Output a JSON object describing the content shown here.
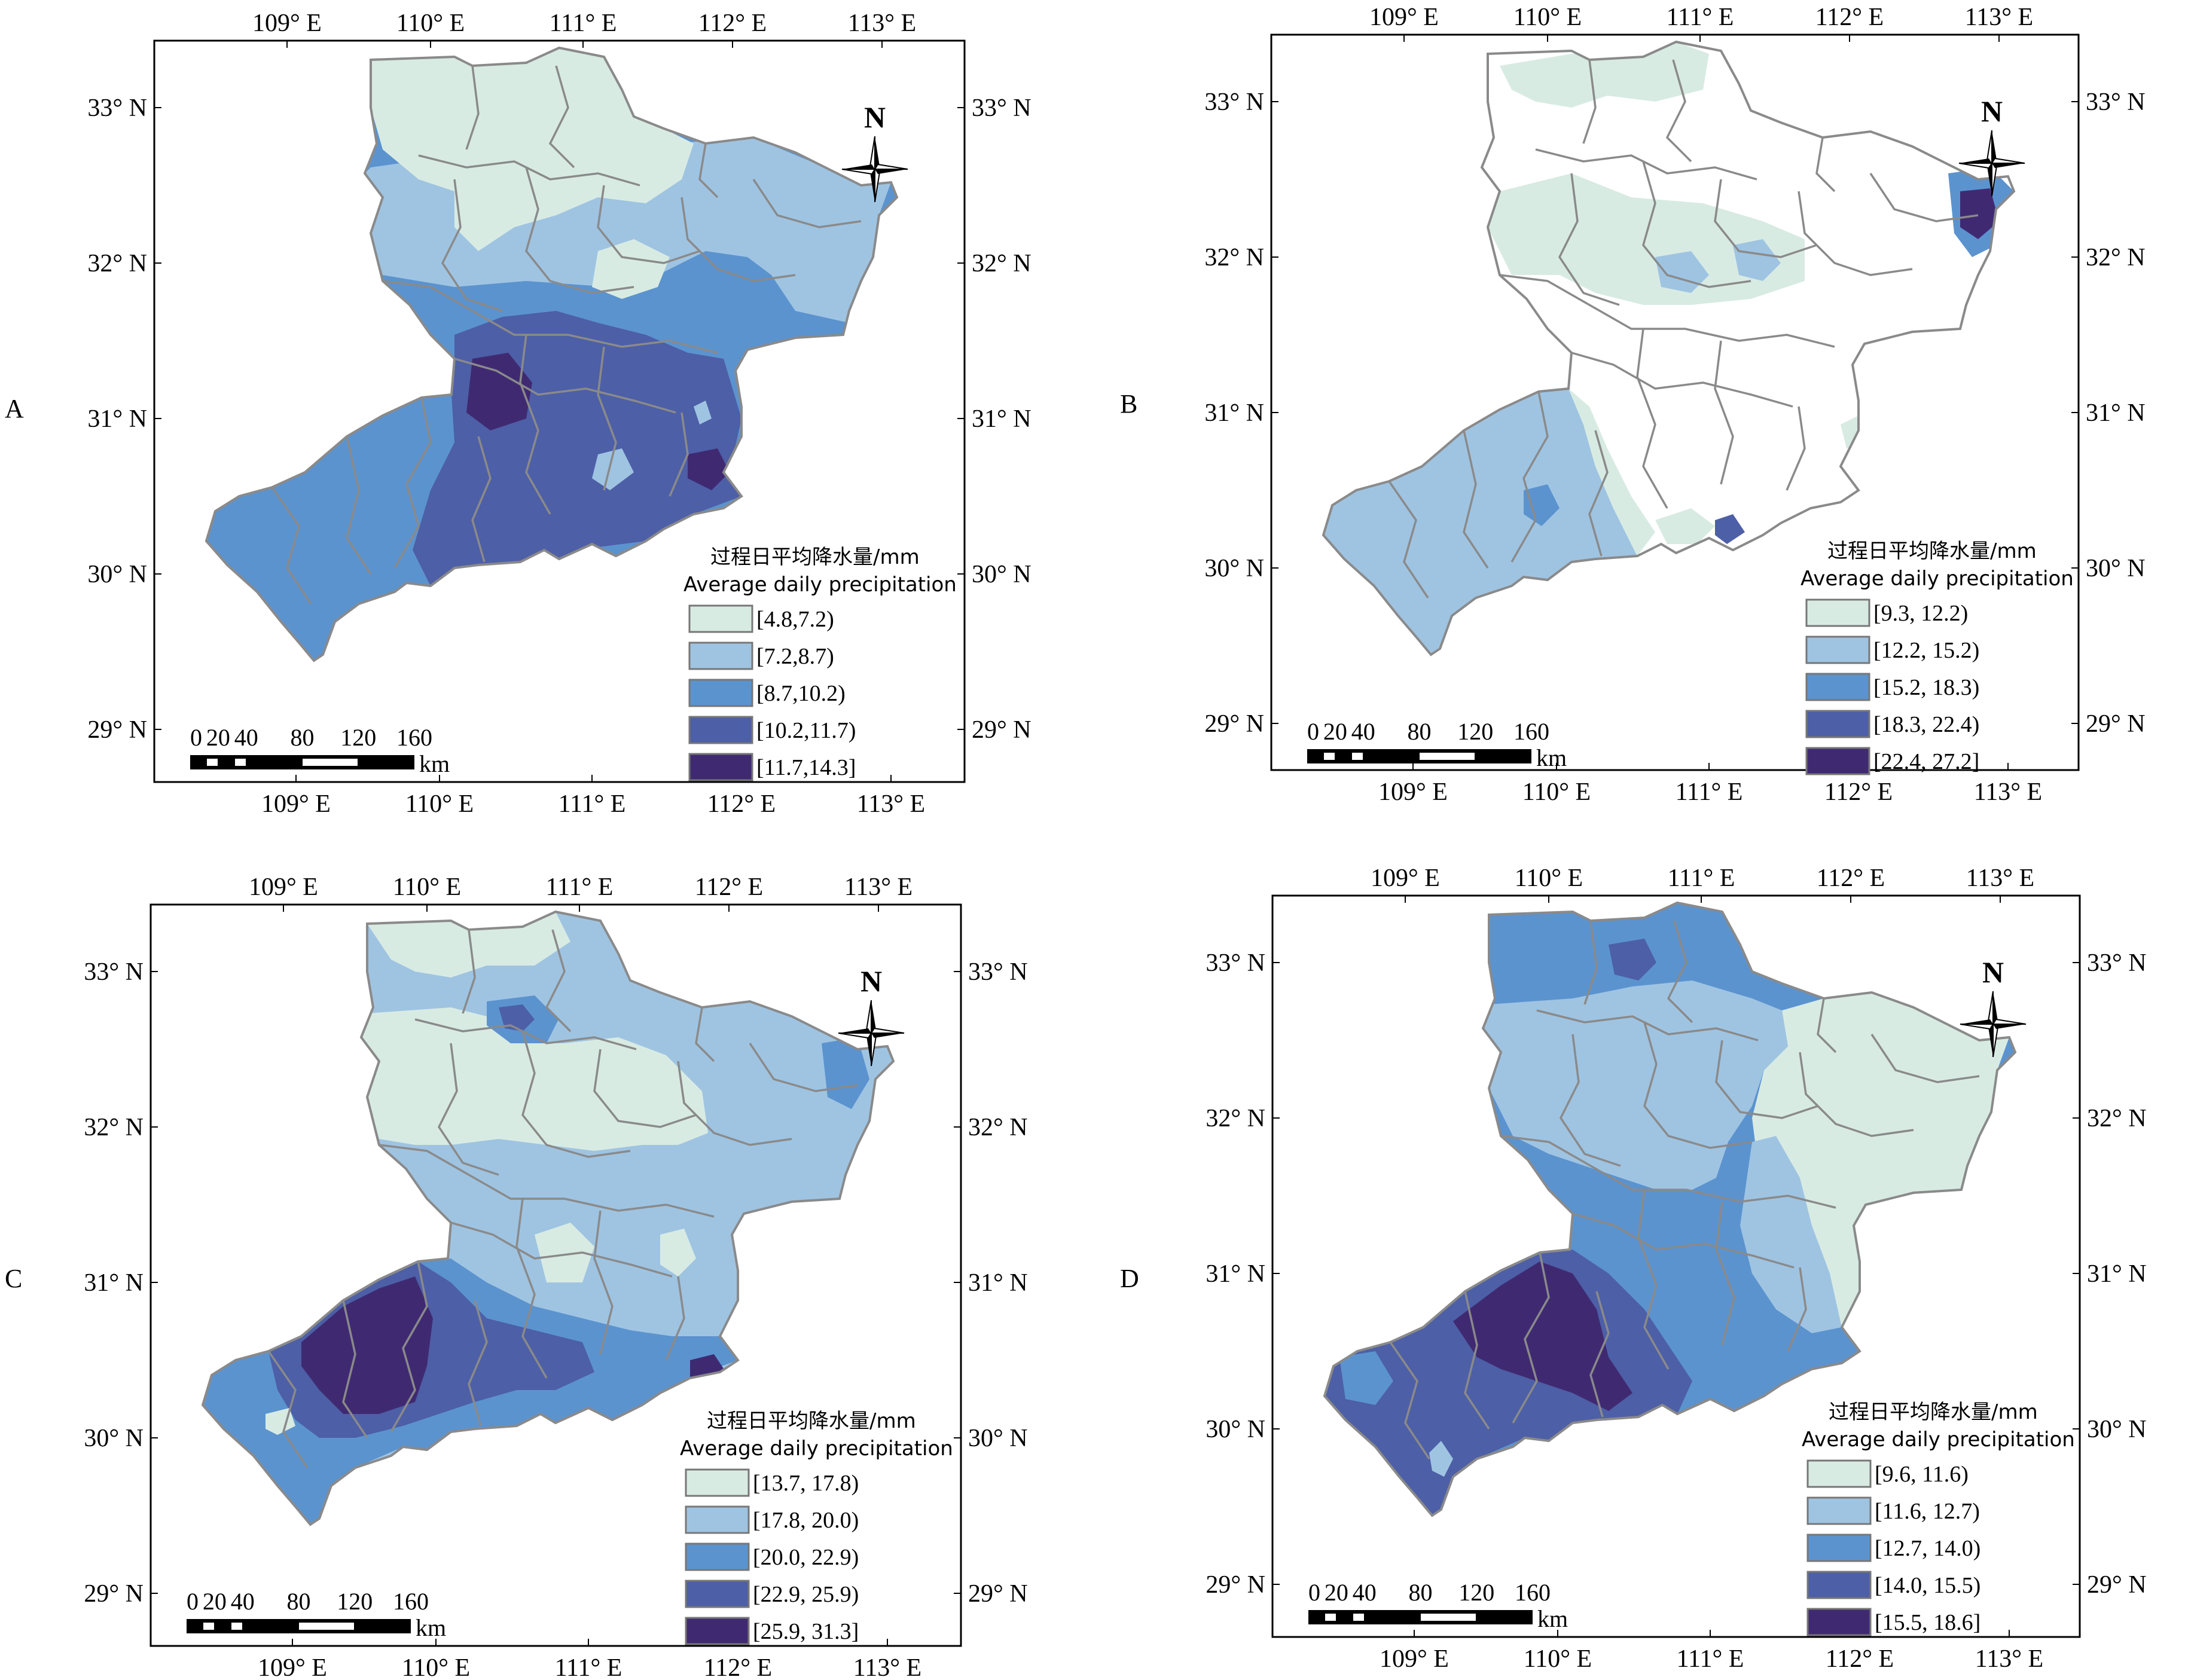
{
  "panels": [
    {
      "id": "A",
      "letter": "A",
      "legend_cn": "过程日平均降水量/mm",
      "legend_en": "Average daily precipitation",
      "classes": [
        "[4.8,7.2)",
        "[7.2,8.7)",
        "[8.7,10.2)",
        "[10.2,11.7)",
        "[11.7,14.3]"
      ],
      "lon_labels": [
        "109° E",
        "110° E",
        "111° E",
        "112° E",
        "113° E"
      ],
      "lat_labels": [
        "33° N",
        "32° N",
        "31° N",
        "30° N",
        "29° N"
      ],
      "north": "N",
      "scale_labels": [
        "0",
        "20",
        "40",
        "80",
        "120",
        "160"
      ],
      "scale_unit": "km",
      "classes_visible": [
        0,
        1,
        2,
        3,
        4
      ]
    },
    {
      "id": "B",
      "letter": "B",
      "legend_cn": "过程日平均降水量/mm",
      "legend_en": "Average daily precipitation",
      "classes": [
        "[9.3, 12.2)",
        "[12.2, 15.2)",
        "[15.2, 18.3)",
        "[18.3, 22.4)",
        "[22.4, 27.2]"
      ],
      "lon_labels": [
        "109° E",
        "110° E",
        "111° E",
        "112° E",
        "113° E"
      ],
      "lat_labels": [
        "33° N",
        "32° N",
        "31° N",
        "30° N",
        "29° N"
      ],
      "north": "N",
      "scale_labels": [
        "0",
        "20",
        "40",
        "80",
        "120",
        "160"
      ],
      "scale_unit": "km"
    },
    {
      "id": "C",
      "letter": "C",
      "legend_cn": "过程日平均降水量/mm",
      "legend_en": "Average daily precipitation",
      "classes": [
        "[13.7, 17.8)",
        "[17.8, 20.0)",
        "[20.0, 22.9)",
        "[22.9, 25.9)",
        "[25.9, 31.3]"
      ],
      "lon_labels": [
        "109° E",
        "110° E",
        "111° E",
        "112° E",
        "113° E"
      ],
      "lat_labels": [
        "33° N",
        "32° N",
        "31° N",
        "30° N",
        "29° N"
      ],
      "north": "N",
      "scale_labels": [
        "0",
        "20",
        "40",
        "80",
        "120",
        "160"
      ],
      "scale_unit": "km"
    },
    {
      "id": "D",
      "letter": "D",
      "legend_cn": "过程日平均降水量/mm",
      "legend_en": "Average daily precipitation",
      "classes": [
        "[9.6, 11.6)",
        "[11.6, 12.7)",
        "[12.7, 14.0)",
        "[14.0, 15.5)",
        "[15.5, 18.6]"
      ],
      "lon_labels": [
        "109° E",
        "110° E",
        "111° E",
        "112° E",
        "113° E"
      ],
      "lat_labels": [
        "33° N",
        "32° N",
        "31° N",
        "30° N",
        "29° N"
      ],
      "north": "N",
      "scale_labels": [
        "0",
        "20",
        "40",
        "80",
        "120",
        "160"
      ],
      "scale_unit": "km"
    }
  ],
  "colors": {
    "class_fills": [
      "#d8ebe3",
      "#9fc4e2",
      "#5b93cf",
      "#4d5fa6",
      "#3f2a72"
    ],
    "boundary": "#8a8a8a",
    "frame": "#000000",
    "no_data_fill": "#ffffff"
  }
}
